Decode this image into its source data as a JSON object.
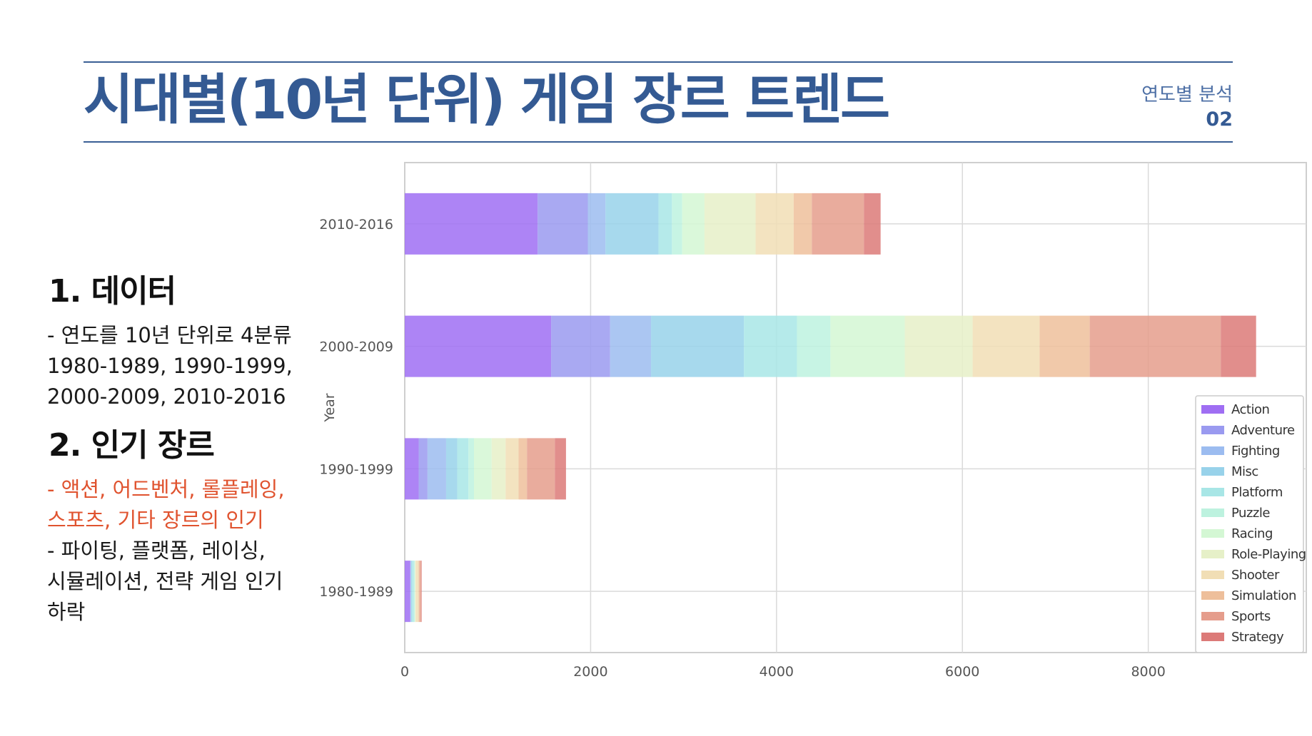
{
  "header": {
    "title": "시대별(10년 단위) 게임 장르 트렌드",
    "section_label": "연도별 분석",
    "section_number": "02"
  },
  "left_panel": {
    "heading_1": "1. 데이터",
    "para_1": [
      "- 연도를 10년 단위로 4분류",
      "1980-1989, 1990-1999,",
      "2000-2009, 2010-2016"
    ],
    "heading_2": "2. 인기 장르",
    "para_2_highlight": [
      "- 액션, 어드벤처, 롤플레잉,",
      "스포츠, 기타 장르의 인기"
    ],
    "para_2_rest": [
      "- 파이팅, 플랫폼,  레이싱,",
      "시뮬레이션, 전략 게임 인기",
      "하락"
    ]
  },
  "chart_data": {
    "type": "bar",
    "orientation": "horizontal",
    "stacked": true,
    "categories": [
      "2010-2016",
      "2000-2009",
      "1990-1999",
      "1980-1989"
    ],
    "ylabel": "Year",
    "xlabel": "",
    "xlim": [
      0,
      9700
    ],
    "xticks": [
      0,
      2000,
      4000,
      6000,
      8000
    ],
    "grid": true,
    "legend_position": "lower-right",
    "series": [
      {
        "name": "Action",
        "color": "#9f6ef3",
        "values": [
          1430,
          1575,
          150,
          58
        ]
      },
      {
        "name": "Adventure",
        "color": "#9a9af0",
        "values": [
          540,
          635,
          95,
          5
        ]
      },
      {
        "name": "Fighting",
        "color": "#9cbcf0",
        "values": [
          190,
          440,
          200,
          5
        ]
      },
      {
        "name": "Misc",
        "color": "#98d2ea",
        "values": [
          570,
          1000,
          120,
          10
        ]
      },
      {
        "name": "Platform",
        "color": "#a8e6e6",
        "values": [
          145,
          570,
          120,
          20
        ]
      },
      {
        "name": "Puzzle",
        "color": "#bdf2df",
        "values": [
          110,
          360,
          60,
          10
        ]
      },
      {
        "name": "Racing",
        "color": "#d4f7d4",
        "values": [
          240,
          800,
          190,
          5
        ]
      },
      {
        "name": "Role-Playing",
        "color": "#e6f0c8",
        "values": [
          550,
          730,
          150,
          5
        ]
      },
      {
        "name": "Shooter",
        "color": "#f1deb5",
        "values": [
          410,
          720,
          140,
          30
        ]
      },
      {
        "name": "Simulation",
        "color": "#eebf9b",
        "values": [
          195,
          540,
          90,
          10
        ]
      },
      {
        "name": "Sports",
        "color": "#e59d8c",
        "values": [
          560,
          1410,
          300,
          20
        ]
      },
      {
        "name": "Strategy",
        "color": "#dc7a78",
        "values": [
          180,
          380,
          120,
          5
        ]
      }
    ]
  }
}
